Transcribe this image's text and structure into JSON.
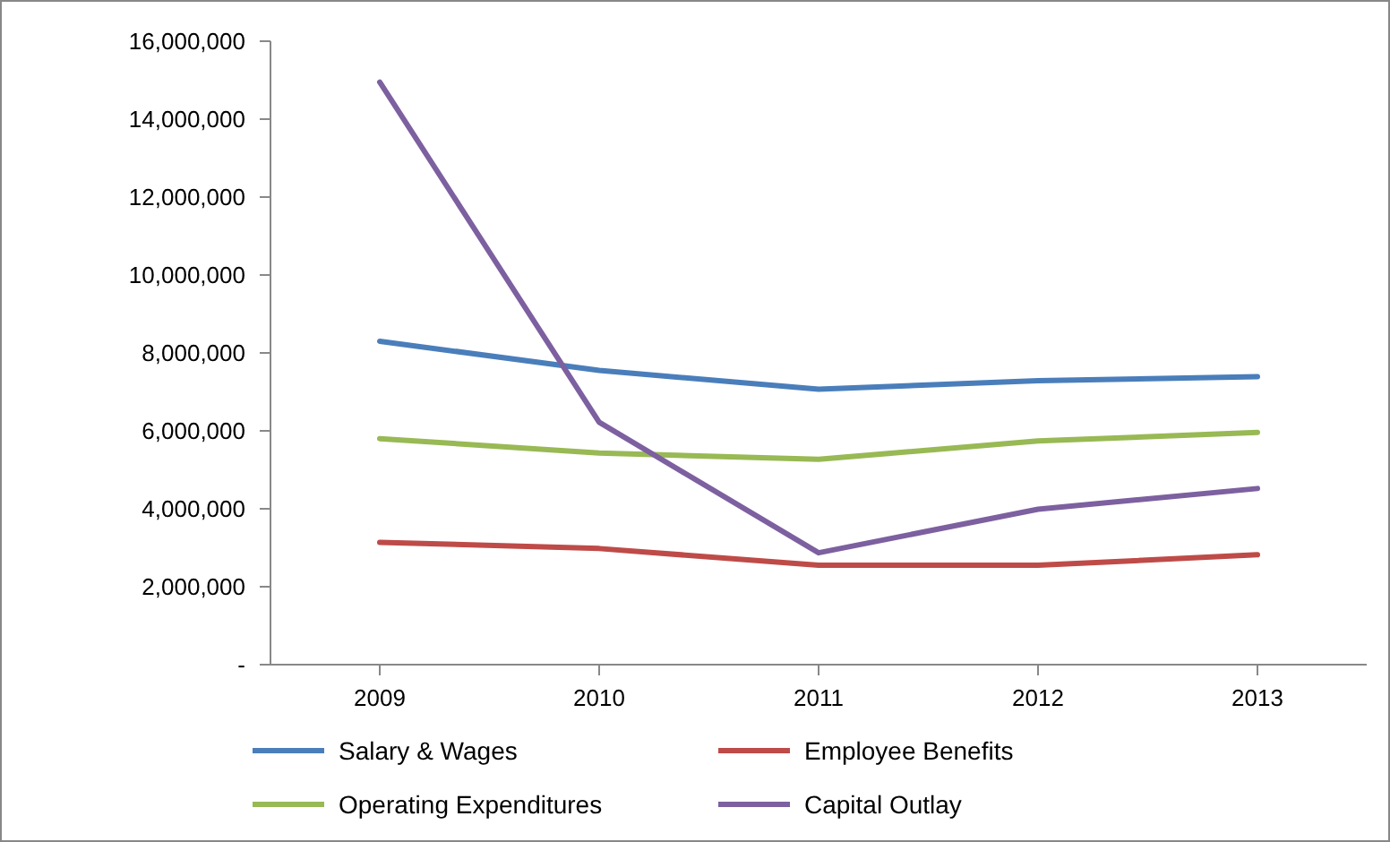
{
  "chart_data": {
    "type": "line",
    "categories": [
      "2009",
      "2010",
      "2011",
      "2012",
      "2013"
    ],
    "series": [
      {
        "name": "Salary & Wages",
        "color": "#4a7ebb",
        "values": [
          8300000,
          7550000,
          7070000,
          7290000,
          7390000
        ]
      },
      {
        "name": "Employee Benefits",
        "color": "#be4b48",
        "values": [
          3140000,
          2980000,
          2550000,
          2550000,
          2820000
        ]
      },
      {
        "name": "Operating Expenditures",
        "color": "#98b954",
        "values": [
          5800000,
          5430000,
          5270000,
          5740000,
          5960000
        ]
      },
      {
        "name": "Capital Outlay",
        "color": "#7d60a0",
        "values": [
          14950000,
          6220000,
          2870000,
          3990000,
          4520000
        ]
      }
    ],
    "ylim": [
      0,
      16000000
    ],
    "yticks": [
      {
        "value": 0,
        "label": "-"
      },
      {
        "value": 2000000,
        "label": "2,000,000"
      },
      {
        "value": 4000000,
        "label": "4,000,000"
      },
      {
        "value": 6000000,
        "label": "6,000,000"
      },
      {
        "value": 8000000,
        "label": "8,000,000"
      },
      {
        "value": 10000000,
        "label": "10,000,000"
      },
      {
        "value": 12000000,
        "label": "12,000,000"
      },
      {
        "value": 14000000,
        "label": "14,000,000"
      },
      {
        "value": 16000000,
        "label": "16,000,000"
      }
    ],
    "grid": false,
    "legend": "bottom",
    "marker": "none",
    "line_style": "solid"
  }
}
